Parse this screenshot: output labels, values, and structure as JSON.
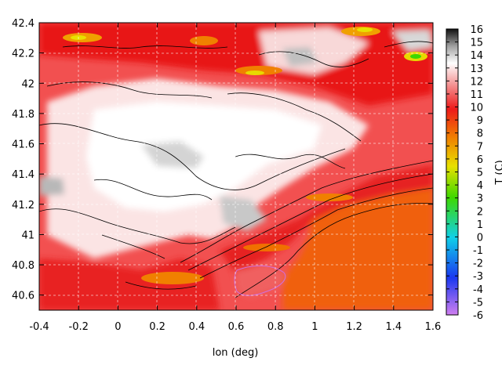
{
  "chart_data": {
    "type": "heatmap",
    "title": "",
    "xlabel": "lon (deg)",
    "ylabel": "",
    "colorbar_label": "T (C)",
    "xlim": [
      -0.4,
      1.6
    ],
    "ylim": [
      40.5,
      42.4
    ],
    "x_ticks": [
      "-0.4",
      "-0.2",
      "0",
      "0.2",
      "0.4",
      "0.6",
      "0.8",
      "1",
      "1.2",
      "1.4",
      "1.6"
    ],
    "y_ticks": [
      "40.6",
      "40.8",
      "41",
      "41.2",
      "41.4",
      "41.6",
      "41.8",
      "42",
      "42.2",
      "42.4"
    ],
    "colorbar_ticks": [
      "16",
      "15",
      "14",
      "13",
      "12",
      "11",
      "10",
      "9",
      "8",
      "7",
      "6",
      "5",
      "4",
      "3",
      "2",
      "1",
      "0",
      "-1",
      "-2",
      "-3",
      "-4",
      "-5",
      "-6"
    ],
    "colorbar_range": [
      -6,
      16
    ],
    "grid": true,
    "colors": {
      "low": "#d07ef0",
      "blue": "#1a38f0",
      "cyan": "#10d0e8",
      "green": "#3ed800",
      "yellow": "#e8e000",
      "orange": "#f08000",
      "red": "#ee1a1a",
      "pink": "#f5a8a8",
      "white": "#ffffff",
      "grey": "#a0a0a0",
      "high": "#101010"
    }
  }
}
